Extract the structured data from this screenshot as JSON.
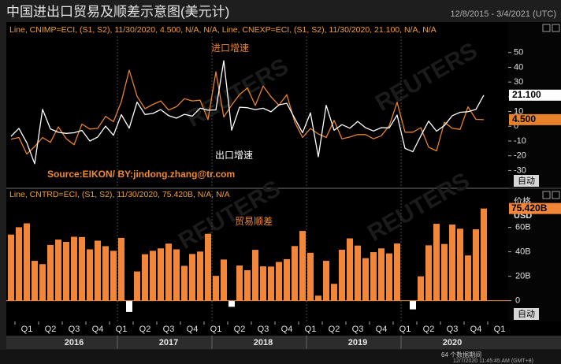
{
  "header": {
    "title": "中国进出口贸易及顺差示意图(美元计)",
    "date_range": "12/8/2015 - 3/4/2021 (UTC)"
  },
  "chart_data": [
    {
      "type": "line",
      "legend_text": "Line, CNIMP=ECI, (S1, S2), 11/30/2020, 4.500, N/A, N/A, Line, CNEXP=ECI, (S1, S2), 11/30/2020, 21.100, N/A, N/A",
      "annotations": [
        {
          "text": "进口增速",
          "color": "#e8822a"
        },
        {
          "text": "出口增速",
          "color": "#ffffff"
        },
        {
          "text": "Source:EIKON/ BY:jindong.zhang@tr.com",
          "color": "#f08a30"
        }
      ],
      "ylim": [
        -41,
        60
      ],
      "yticks": [
        -30,
        -20,
        -10,
        0,
        10,
        20,
        30,
        40,
        50
      ],
      "series": [
        {
          "name": "CNIMP=ECI",
          "color": "#e8822a",
          "values": [
            -8.7,
            -7.6,
            -18.8,
            -13.8,
            -7.6,
            -10.9,
            -0.4,
            -8.4,
            -12.5,
            1.5,
            -1.9,
            -1.4,
            6.7,
            3.1,
            16.7,
            38.1,
            20.3,
            11.9,
            14.8,
            17.2,
            11.0,
            13.3,
            18.7,
            17.2,
            17.7,
            4.5,
            36.9,
            6.3,
            14.4,
            21.5,
            26.0,
            14.1,
            27.3,
            20.0,
            14.3,
            21.4,
            3.0,
            -7.6,
            -1.5,
            -5.2,
            -7.6,
            4.0,
            -8.5,
            -7.3,
            -5.6,
            -5.6,
            -8.5,
            -6.4,
            0.3,
            16.3,
            -4.0,
            -4.0,
            -0.9,
            -14.2,
            -16.7,
            2.7,
            -1.4,
            -2.1,
            13.2,
            4.7,
            4.5
          ],
          "value_labels": [
            null,
            null,
            null,
            null,
            null,
            null,
            null,
            null,
            null,
            null,
            null,
            null,
            null,
            null,
            null,
            null,
            null,
            null,
            null,
            null,
            null,
            null,
            null,
            null,
            null,
            null,
            null,
            null,
            null,
            null,
            null,
            null,
            null,
            null,
            null,
            null,
            null,
            null,
            null,
            null,
            null,
            null,
            null,
            null,
            null,
            null,
            null,
            null,
            null,
            null,
            null,
            null,
            null,
            null,
            null,
            null,
            null,
            null,
            null,
            null,
            "4.500"
          ]
        },
        {
          "name": "CNEXP=ECI",
          "color": "#ffffff",
          "values": [
            -6.8,
            -1.4,
            -11.2,
            -25.4,
            11.5,
            -1.8,
            -4.1,
            -4.8,
            -4.4,
            -2.8,
            -10.0,
            -7.3,
            0.1,
            -6.1,
            7.9,
            -1.3,
            16.4,
            8.0,
            8.7,
            11.3,
            7.2,
            5.5,
            8.1,
            6.9,
            12.3,
            10.9,
            11.1,
            44.5,
            -2.7,
            12.9,
            12.6,
            11.3,
            12.2,
            9.8,
            14.5,
            15.6,
            5.4,
            -4.4,
            9.1,
            -20.7,
            14.2,
            -2.7,
            1.1,
            -1.3,
            3.3,
            -1.0,
            -3.2,
            -0.9,
            -1.1,
            7.6,
            -15.0,
            -17.2,
            -6.6,
            3.5,
            -3.3,
            0.5,
            7.2,
            9.5,
            9.9,
            11.4,
            21.1
          ],
          "value_labels": [
            null,
            null,
            null,
            null,
            null,
            null,
            null,
            null,
            null,
            null,
            null,
            null,
            null,
            null,
            null,
            null,
            null,
            null,
            null,
            null,
            null,
            null,
            null,
            null,
            null,
            null,
            null,
            null,
            null,
            null,
            null,
            null,
            null,
            null,
            null,
            null,
            null,
            null,
            null,
            null,
            null,
            null,
            null,
            null,
            null,
            null,
            null,
            null,
            null,
            null,
            null,
            null,
            null,
            null,
            null,
            null,
            null,
            null,
            null,
            null,
            "21.100"
          ]
        }
      ]
    },
    {
      "type": "bar",
      "legend_text": "Line, CNTRD=ECI, (S1, S2), 11/30/2020, 75.420B, N/A, N/A",
      "annotations": [
        {
          "text": "贸易顺差",
          "color": "#f08a30"
        }
      ],
      "y_axis_label": "USD",
      "color": "#f2873a",
      "negative_color": "#ffffff",
      "ylim": [
        -17,
        81
      ],
      "yticks": [
        0,
        {
          "value": 20,
          "label": "20B"
        },
        {
          "value": 40,
          "label": "40B"
        },
        {
          "value": 60,
          "label": "60B"
        }
      ],
      "values": [
        54.1,
        60.1,
        63.3,
        32.6,
        29.9,
        45.6,
        50.0,
        48.1,
        52.3,
        52.1,
        42.0,
        49.1,
        44.6,
        40.8,
        51.4,
        -9.2,
        23.9,
        38.0,
        40.8,
        42.8,
        46.7,
        42.0,
        28.5,
        38.2,
        40.2,
        54.7,
        20.3,
        33.7,
        -5.0,
        28.8,
        24.9,
        41.6,
        28.1,
        27.9,
        31.7,
        34.0,
        44.7,
        57.1,
        39.2,
        4.1,
        32.6,
        13.8,
        41.7,
        51.0,
        45.1,
        34.8,
        39.7,
        42.8,
        38.7,
        46.8,
        null,
        -7.1,
        19.9,
        45.3,
        62.9,
        46.4,
        62.3,
        58.9,
        37.0,
        58.4,
        75.42
      ],
      "value_labels": [
        null,
        null,
        null,
        null,
        null,
        null,
        null,
        null,
        null,
        null,
        null,
        null,
        null,
        null,
        null,
        null,
        null,
        null,
        null,
        null,
        null,
        null,
        null,
        null,
        null,
        null,
        null,
        null,
        null,
        null,
        null,
        null,
        null,
        null,
        null,
        null,
        null,
        null,
        null,
        null,
        null,
        null,
        null,
        null,
        null,
        null,
        null,
        null,
        null,
        null,
        null,
        null,
        null,
        null,
        null,
        null,
        null,
        null,
        null,
        null,
        "75.420B"
      ],
      "quarters": [
        "Q1",
        "Q2",
        "Q3",
        "Q4",
        "Q1",
        "Q2",
        "Q3",
        "Q4",
        "Q1",
        "Q2",
        "Q3",
        "Q4",
        "Q1",
        "Q2",
        "Q3",
        "Q4",
        "Q1",
        "Q2",
        "Q3",
        "Q4",
        "Q1"
      ],
      "years": [
        "2016",
        "2017",
        "2018",
        "2019",
        "2020"
      ]
    }
  ],
  "ui": {
    "auto_button": "自动",
    "price_label": "价格",
    "watermark": "REUTERS",
    "status_periods": "64 个数据期间",
    "timestamp": "12/7/2020 11:45:45 AM (GMT+8)"
  }
}
